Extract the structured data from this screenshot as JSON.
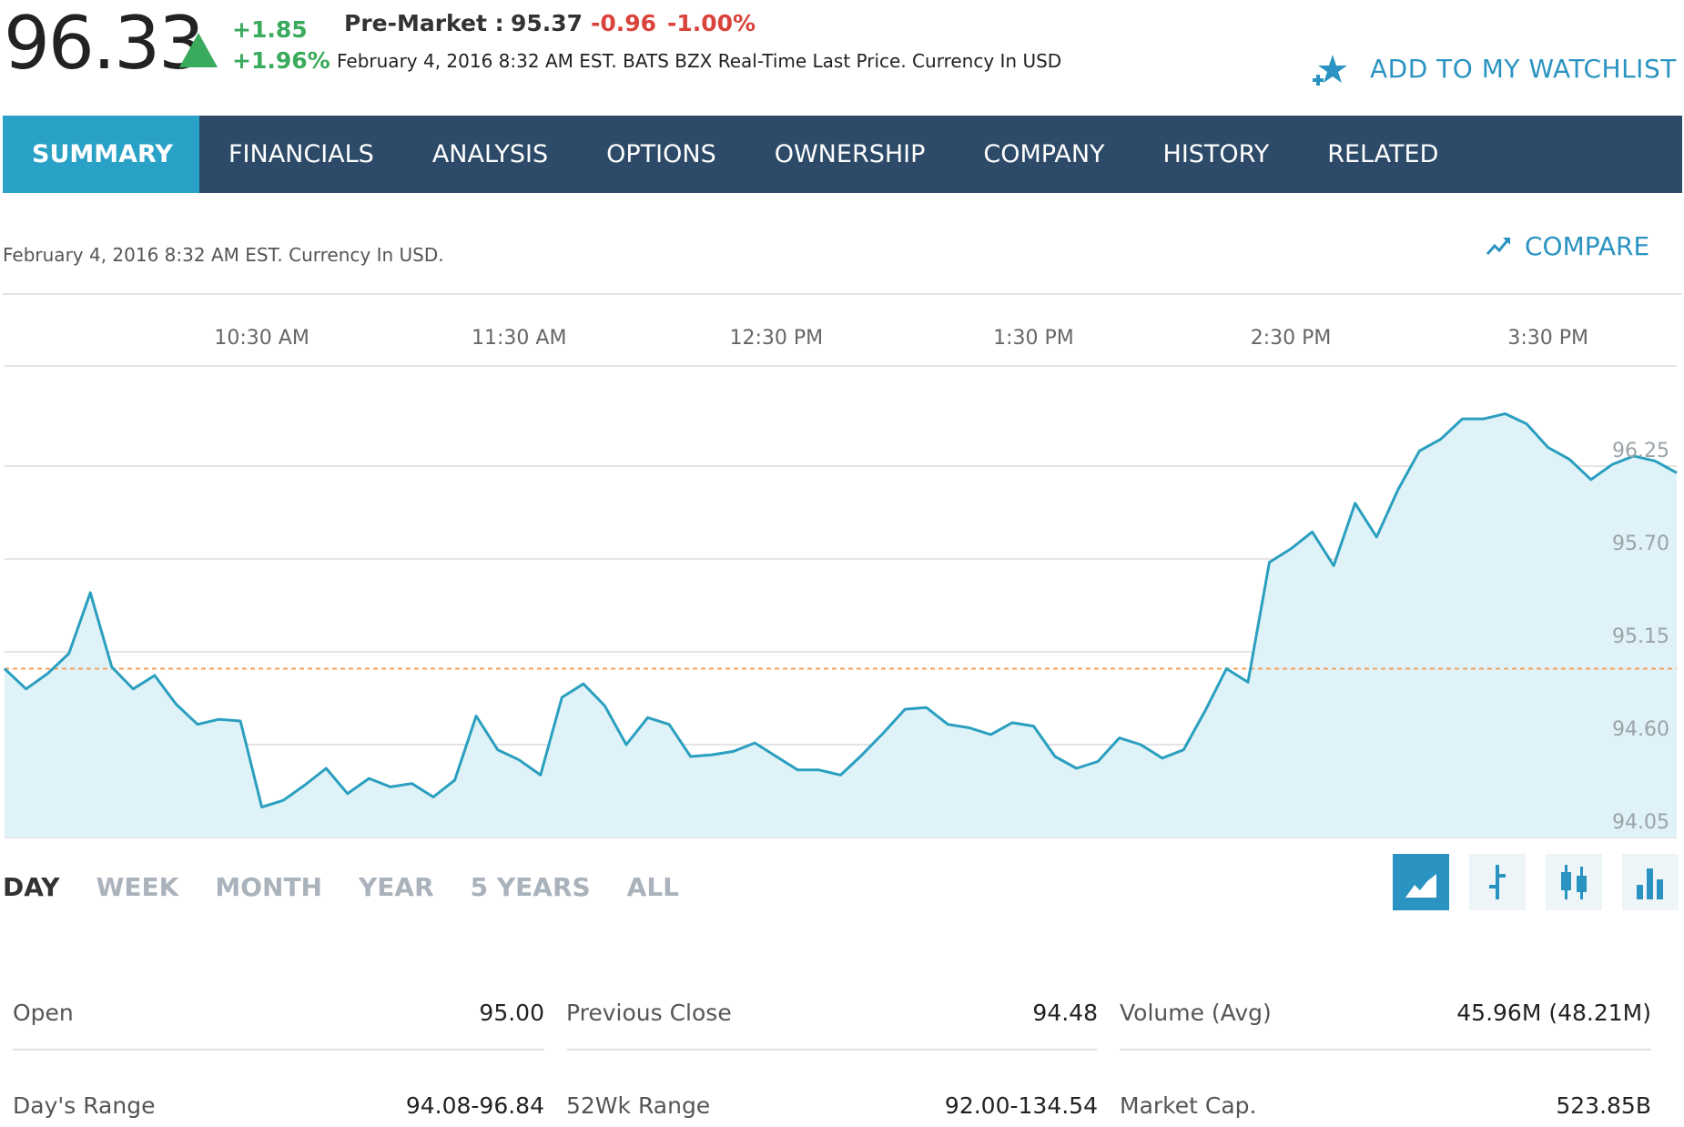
{
  "quote": {
    "price": "96.33",
    "change": "+1.85",
    "change_pct": "+1.96%",
    "premarket_label": "Pre-Market :",
    "premarket_price": "95.37",
    "premarket_change": "-0.96",
    "premarket_pct": "-1.00%",
    "meta": "February 4, 2016 8:32 AM EST. BATS BZX Real-Time Last Price. Currency In USD",
    "watchlist_label": "ADD TO MY WATCHLIST"
  },
  "nav": {
    "tabs": [
      "SUMMARY",
      "FINANCIALS",
      "ANALYSIS",
      "OPTIONS",
      "OWNERSHIP",
      "COMPANY",
      "HISTORY",
      "RELATED"
    ],
    "active_index": 0
  },
  "subheader": {
    "date": "February 4, 2016 8:32 AM EST. Currency In USD.",
    "compare_label": "COMPARE"
  },
  "chart_data": {
    "type": "area",
    "x_tick_labels": [
      "10:30 AM",
      "11:30 AM",
      "12:30 PM",
      "1:30 PM",
      "2:30 PM",
      "3:30 PM"
    ],
    "y_tick_labels": [
      "96.25",
      "95.70",
      "95.15",
      "94.60",
      "94.05"
    ],
    "y_ticks": [
      96.25,
      95.7,
      95.15,
      94.6,
      94.05
    ],
    "ylim": [
      94.05,
      96.8
    ],
    "x_range_minutes": [
      570,
      960
    ],
    "reference_line": 95.05,
    "grid": true,
    "colors": {
      "line": "#2a9fbf",
      "fill": "#dff2f7",
      "reference": "#f0a35e",
      "grid": "#e4e4e4"
    },
    "series": [
      {
        "x": [
          570,
          575,
          580,
          585,
          590,
          595,
          600,
          605,
          610,
          615,
          620,
          625,
          630,
          635,
          640,
          645,
          650,
          655,
          660,
          665,
          670,
          675,
          680,
          685,
          690,
          695,
          700,
          705,
          710,
          715,
          720,
          725,
          730,
          735,
          740,
          745,
          750,
          755,
          760,
          765,
          770,
          775,
          780,
          785,
          790,
          795,
          800,
          805,
          810,
          815,
          820,
          825,
          830,
          835,
          840,
          845,
          850,
          855,
          860,
          865,
          870,
          875,
          880,
          885,
          890,
          895,
          900,
          905,
          910,
          915,
          920,
          925,
          930,
          935,
          940,
          945,
          950,
          955,
          960
        ],
        "values": [
          95.05,
          94.93,
          95.02,
          95.14,
          95.5,
          95.06,
          94.93,
          95.01,
          94.84,
          94.72,
          94.75,
          94.74,
          94.23,
          94.27,
          94.36,
          94.46,
          94.31,
          94.4,
          94.35,
          94.37,
          94.29,
          94.39,
          94.77,
          94.57,
          94.51,
          94.42,
          94.88,
          94.96,
          94.83,
          94.6,
          94.76,
          94.72,
          94.53,
          94.54,
          94.56,
          94.61,
          94.53,
          94.45,
          94.45,
          94.42,
          94.54,
          94.67,
          94.81,
          94.82,
          94.72,
          94.7,
          94.66,
          94.73,
          94.71,
          94.53,
          94.46,
          94.5,
          94.64,
          94.6,
          94.52,
          94.57,
          94.8,
          95.05,
          94.97,
          95.68,
          95.76,
          95.86,
          95.66,
          96.03,
          95.83,
          96.11,
          96.34,
          96.41,
          96.53,
          96.53,
          96.56,
          96.5,
          96.36,
          96.29,
          96.17,
          96.26,
          96.31,
          96.28,
          96.21
        ]
      }
    ]
  },
  "ranges": {
    "items": [
      "DAY",
      "WEEK",
      "MONTH",
      "YEAR",
      "5 YEARS",
      "ALL"
    ],
    "active_index": 0
  },
  "chart_types": [
    "mountain-chart-icon",
    "ohlc-chart-icon",
    "candlestick-chart-icon",
    "bar-chart-icon"
  ],
  "stats": {
    "open_label": "Open",
    "open_value": "95.00",
    "prev_close_label": "Previous Close",
    "prev_close_value": "94.48",
    "volume_label": "Volume (Avg)",
    "volume_value": "45.96M (48.21M)",
    "days_range_label": "Day's Range",
    "days_range_value": "94.08-96.84",
    "wk52_label": "52Wk Range",
    "wk52_value": "92.00-134.54",
    "mktcap_label": "Market Cap.",
    "mktcap_value": "523.85B"
  }
}
